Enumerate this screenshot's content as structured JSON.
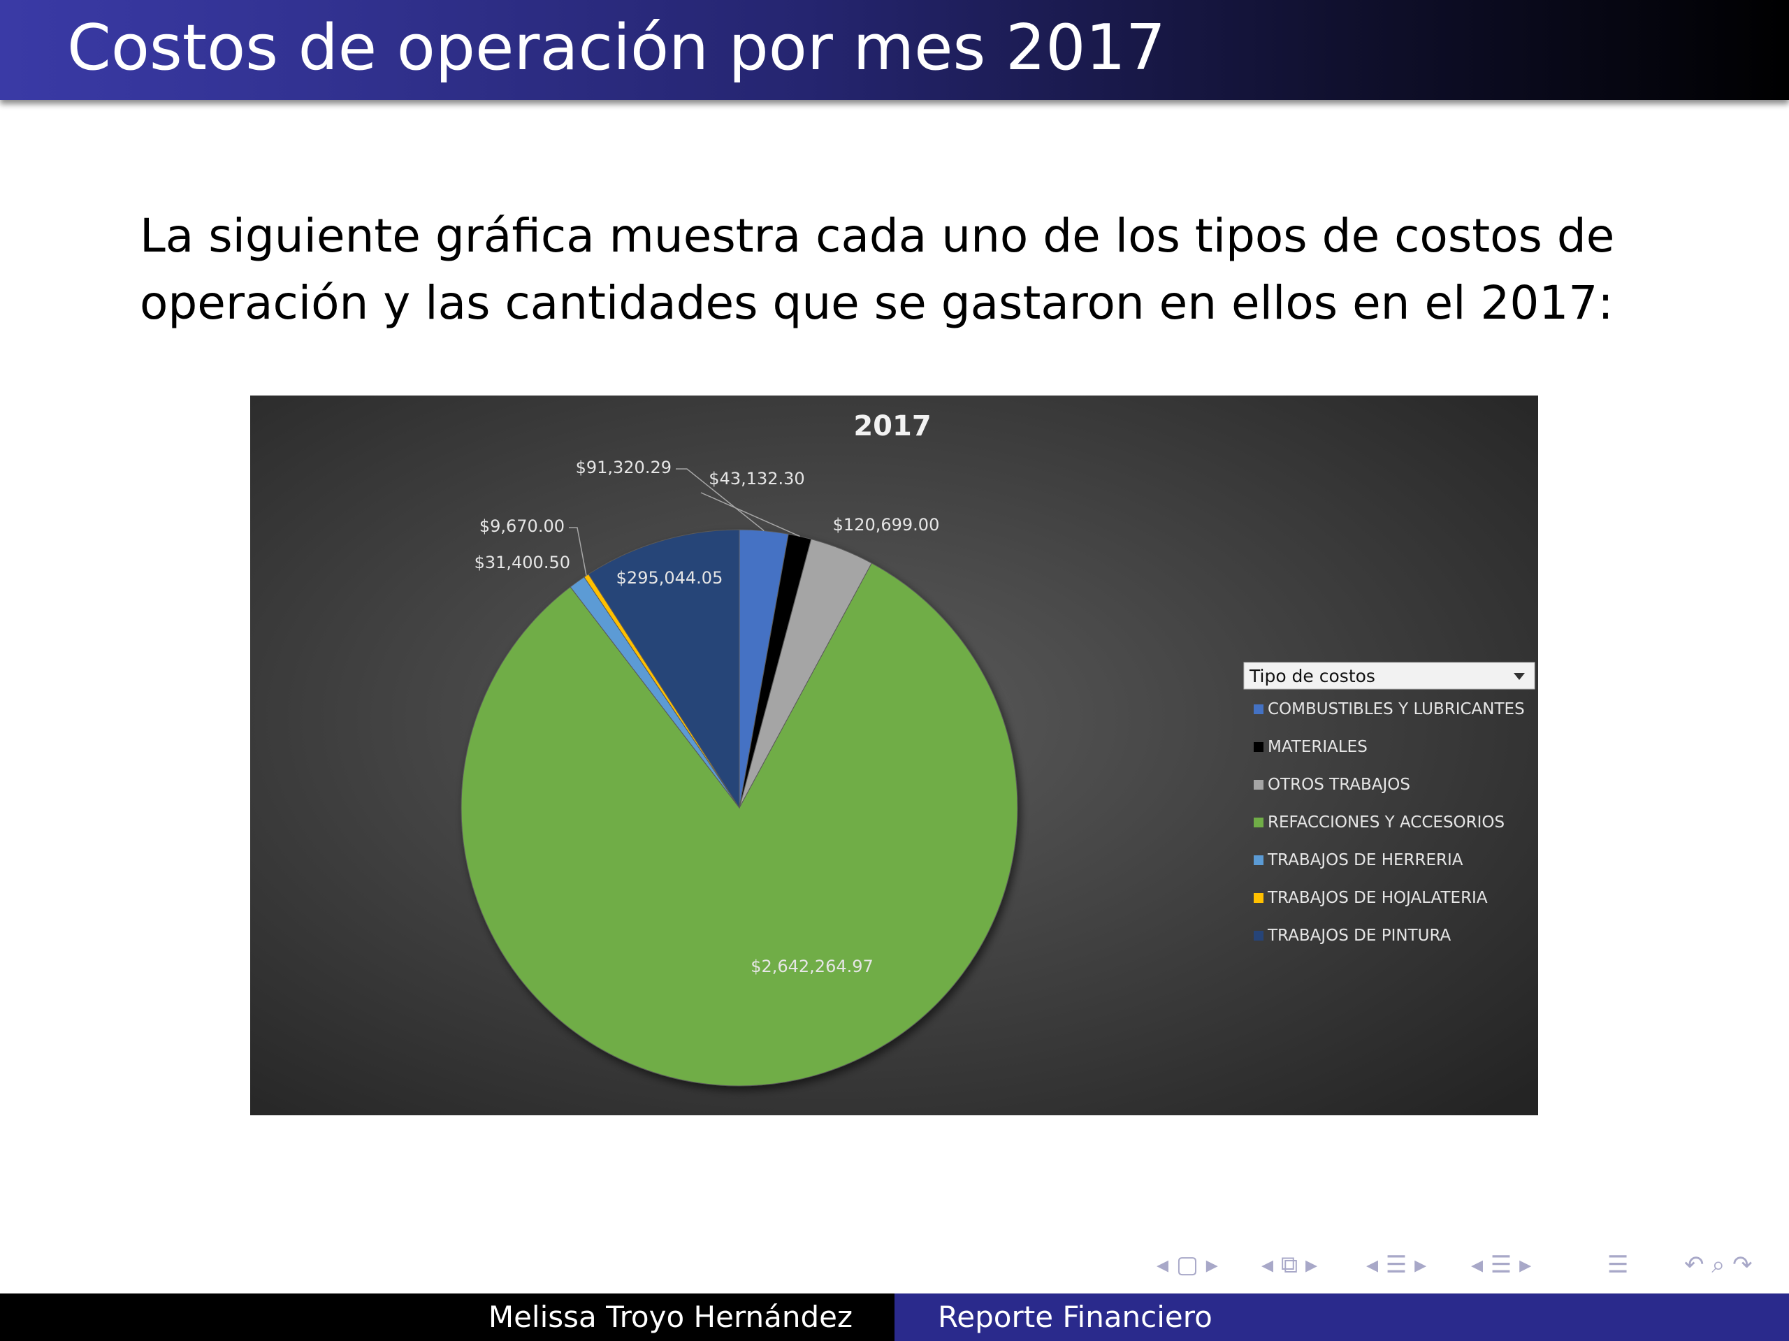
{
  "slide": {
    "title": "Costos de operación por mes 2017",
    "intro": "La siguiente gráfica muestra cada uno de los tipos de costos de operación y las cantidades que se gastaron en ellos en el 2017:"
  },
  "footer": {
    "author": "Melissa Troyo Hernández",
    "report": "Reporte Financiero"
  },
  "legend": {
    "header": "Tipo de costos"
  },
  "chart_data": {
    "type": "pie",
    "title": "2017",
    "categories": [
      "COMBUSTIBLES Y LUBRICANTES",
      "MATERIALES",
      "OTROS TRABAJOS",
      "REFACCIONES Y ACCESORIOS",
      "TRABAJOS DE HERRERIA",
      "TRABAJOS DE HOJALATERIA",
      "TRABAJOS DE PINTURA"
    ],
    "values": [
      91320.29,
      43132.3,
      120699.0,
      2642264.97,
      31400.5,
      9670.0,
      295044.05
    ],
    "labels": [
      "$91,320.29",
      "$43,132.30",
      "$120,699.00",
      "$2,642,264.97",
      "$31,400.50",
      "$9,670.00",
      "$295,044.05"
    ],
    "colors": [
      "#4472c4",
      "#000000",
      "#a5a5a5",
      "#70ad47",
      "#5b9bd5",
      "#ffc000",
      "#264478"
    ],
    "legend_position": "right"
  }
}
